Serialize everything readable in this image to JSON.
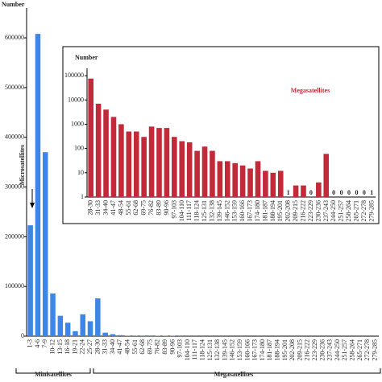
{
  "charts": [
    {
      "type": "bar",
      "color": "#3d86e8",
      "y_label": "Number",
      "categories": [
        "1-3",
        "4-6",
        "7-9",
        "10-12",
        "13-15",
        "16-18",
        "19-21",
        "22-24",
        "25-27",
        "28-30",
        "31-33",
        "34-40",
        "41-47",
        "48-54",
        "55-61",
        "62-68",
        "69-75",
        "76-82",
        "83-89",
        "90-96",
        "97-103",
        "104-110",
        "111-117",
        "118-124",
        "125-131",
        "132-138",
        "139-145",
        "146-152",
        "153-159",
        "160-166",
        "167-173",
        "174-180",
        "181-187",
        "188-194",
        "195-201",
        "202-208",
        "209-215",
        "216-222",
        "223-229",
        "230-236",
        "237-243",
        "244-250",
        "251-257",
        "258-264",
        "265-271",
        "272-278",
        "279-285"
      ],
      "values": [
        223000,
        608000,
        370000,
        86000,
        41000,
        27000,
        10000,
        44000,
        30000,
        76000,
        7000,
        4000,
        2000,
        1000,
        500,
        500,
        300,
        800,
        700,
        700,
        300,
        200,
        180,
        80,
        120,
        80,
        30,
        30,
        25,
        20,
        15,
        30,
        12,
        10,
        12,
        1,
        3,
        3,
        0,
        4,
        60,
        0,
        0,
        0,
        0,
        0,
        1
      ],
      "ylim": [
        0,
        660000
      ],
      "yticks": [
        0,
        100000,
        200000,
        300000,
        400000,
        500000,
        600000
      ],
      "annotations": [
        "Microsatellites",
        "Minisatellites",
        "Megasatellites"
      ]
    },
    {
      "type": "bar",
      "log_scale": true,
      "color": "#c22a3a",
      "title": "Megasatellites",
      "y_label": "Number",
      "categories": [
        "28-30",
        "31-33",
        "34-40",
        "41-47",
        "48-54",
        "55-61",
        "62-68",
        "69-75",
        "76-82",
        "83-89",
        "90-96",
        "97-103",
        "104-110",
        "111-117",
        "118-124",
        "125-131",
        "132-138",
        "139-145",
        "146-152",
        "153-159",
        "160-166",
        "167-173",
        "174-180",
        "181-187",
        "188-194",
        "195-201",
        "202-208",
        "209-215",
        "216-222",
        "223-229",
        "230-236",
        "237-243",
        "244-250",
        "251-257",
        "258-264",
        "265-271",
        "272-278",
        "279-285"
      ],
      "values": [
        76000,
        7000,
        4000,
        2000,
        1000,
        500,
        500,
        300,
        800,
        700,
        700,
        300,
        200,
        180,
        80,
        120,
        80,
        30,
        30,
        25,
        20,
        15,
        30,
        12,
        10,
        12,
        1,
        3,
        3,
        0,
        4,
        60,
        0,
        0,
        0,
        0,
        0,
        1
      ],
      "ylim": [
        1,
        200000
      ],
      "yticks": [
        1,
        10,
        100,
        1000,
        10000,
        100000
      ]
    }
  ]
}
